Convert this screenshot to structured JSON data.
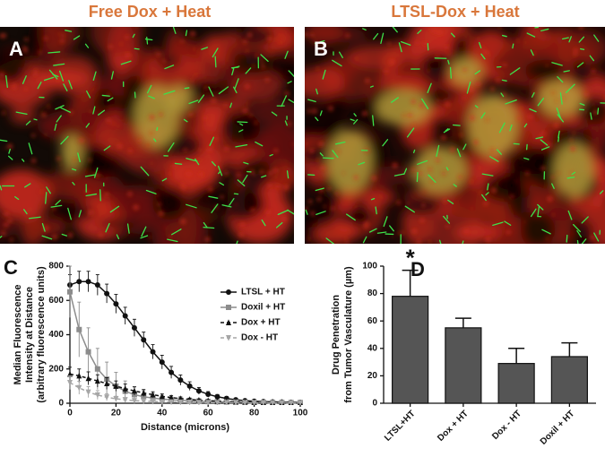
{
  "images": [
    {
      "label": "A",
      "title": "Free Dox + Heat"
    },
    {
      "label": "B",
      "title": "LTSL-Dox + Heat"
    }
  ],
  "chart_data": [
    {
      "type": "line",
      "label": "C",
      "xlabel": "Distance (microns)",
      "ylabel": [
        "Median Fluorescence",
        "Intensity at Distance",
        "(arbitrary fluorescence units)"
      ],
      "xlim": [
        0,
        100
      ],
      "xticks": [
        0,
        20,
        40,
        60,
        80,
        100
      ],
      "ylim": [
        0,
        800
      ],
      "yticks": [
        0,
        200,
        400,
        600,
        800
      ],
      "x": [
        0,
        4,
        8,
        12,
        16,
        20,
        24,
        28,
        32,
        36,
        40,
        44,
        48,
        52,
        56,
        60,
        64,
        68,
        72,
        76,
        80,
        84,
        88,
        92,
        96,
        100
      ],
      "series": [
        {
          "name": "LTSL + HT",
          "color": "#111111",
          "dashed": false,
          "marker": "circle",
          "values": [
            690,
            710,
            710,
            690,
            640,
            580,
            510,
            440,
            370,
            300,
            240,
            180,
            135,
            100,
            72,
            52,
            38,
            28,
            20,
            15,
            12,
            10,
            8,
            7,
            6,
            5
          ],
          "errors": [
            60,
            60,
            60,
            60,
            55,
            55,
            50,
            50,
            45,
            42,
            40,
            35,
            30,
            25,
            20,
            16,
            13,
            11,
            9,
            8,
            7,
            6,
            5,
            5,
            4,
            4
          ]
        },
        {
          "name": "Doxil + HT",
          "color": "#8c8c8c",
          "dashed": false,
          "marker": "square",
          "values": [
            650,
            430,
            300,
            200,
            140,
            100,
            70,
            50,
            38,
            30,
            24,
            20,
            17,
            14,
            12,
            10,
            9,
            8,
            7,
            6,
            5,
            5,
            4,
            4,
            4,
            4
          ],
          "errors": [
            150,
            160,
            140,
            120,
            100,
            80,
            60,
            45,
            35,
            28,
            22,
            18,
            15,
            12,
            10,
            9,
            8,
            7,
            6,
            5,
            4,
            4,
            3,
            3,
            3,
            3
          ]
        },
        {
          "name": "Dox + HT",
          "color": "#111111",
          "dashed": true,
          "marker": "triangle-up",
          "values": [
            170,
            160,
            145,
            130,
            115,
            100,
            85,
            72,
            60,
            50,
            40,
            33,
            27,
            22,
            18,
            15,
            12,
            10,
            8,
            7,
            6,
            5,
            4,
            4,
            3,
            3
          ],
          "errors": [
            40,
            40,
            38,
            36,
            34,
            30,
            27,
            24,
            20,
            17,
            14,
            12,
            10,
            8,
            7,
            6,
            5,
            4,
            3,
            3,
            3,
            2,
            2,
            2,
            2,
            2
          ]
        },
        {
          "name": "Dox - HT",
          "color": "#a6a6a6",
          "dashed": true,
          "marker": "triangle-down",
          "values": [
            120,
            90,
            65,
            48,
            35,
            26,
            20,
            15,
            12,
            10,
            8,
            7,
            6,
            5,
            4,
            4,
            3,
            3,
            3,
            2,
            2,
            2,
            2,
            2,
            2,
            2
          ],
          "errors": [
            40,
            38,
            32,
            26,
            20,
            15,
            12,
            10,
            8,
            6,
            5,
            4,
            4,
            3,
            3,
            2,
            2,
            2,
            2,
            2,
            1,
            1,
            1,
            1,
            1,
            1
          ]
        }
      ]
    },
    {
      "type": "bar",
      "label": "D",
      "ylabel": [
        "Drug Penetration",
        "from Tumor Vasculature (µm)"
      ],
      "categories": [
        "LTSL+HT",
        "Dox + HT",
        "Dox - HT",
        "Doxil + HT"
      ],
      "values": [
        78,
        55,
        29,
        34
      ],
      "errors": [
        19,
        7,
        11,
        10
      ],
      "color": "#555555",
      "annotation": "*",
      "ylim": [
        0,
        100
      ],
      "yticks": [
        0,
        20,
        40,
        60,
        80,
        100
      ]
    }
  ]
}
